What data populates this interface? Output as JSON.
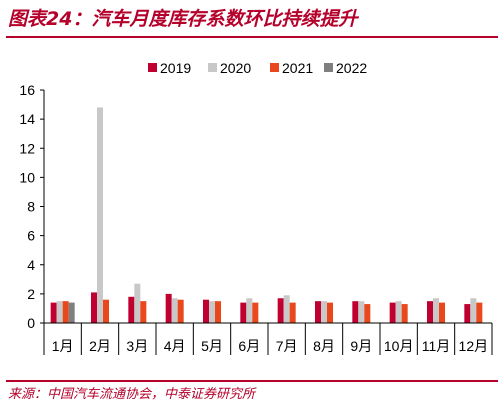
{
  "header": {
    "title": "图表24：汽车月度库存系数环比持续提升"
  },
  "footer": {
    "source": "来源：中国汽车流通协会，中泰证券研究所"
  },
  "chart_data": {
    "type": "bar",
    "categories": [
      "1月",
      "2月",
      "3月",
      "4月",
      "5月",
      "6月",
      "7月",
      "8月",
      "9月",
      "10月",
      "11月",
      "12月"
    ],
    "series": [
      {
        "name": "2019",
        "color": "#c00030",
        "values": [
          1.4,
          2.1,
          1.8,
          2.0,
          1.6,
          1.4,
          1.7,
          1.5,
          1.5,
          1.4,
          1.5,
          1.3
        ]
      },
      {
        "name": "2020",
        "color": "#c8c8c8",
        "values": [
          1.5,
          14.8,
          2.7,
          1.7,
          1.5,
          1.7,
          1.9,
          1.5,
          1.5,
          1.5,
          1.7,
          1.7
        ]
      },
      {
        "name": "2021",
        "color": "#e8481c",
        "values": [
          1.5,
          1.6,
          1.5,
          1.6,
          1.5,
          1.4,
          1.4,
          1.4,
          1.3,
          1.3,
          1.4,
          1.4
        ]
      },
      {
        "name": "2022",
        "color": "#7f7f7f",
        "values": [
          1.4,
          null,
          null,
          null,
          null,
          null,
          null,
          null,
          null,
          null,
          null,
          null
        ]
      }
    ],
    "ylim": [
      0,
      16
    ],
    "yticks": [
      0,
      2,
      4,
      6,
      8,
      10,
      12,
      14,
      16
    ],
    "legend_position": "top",
    "grid": false
  }
}
